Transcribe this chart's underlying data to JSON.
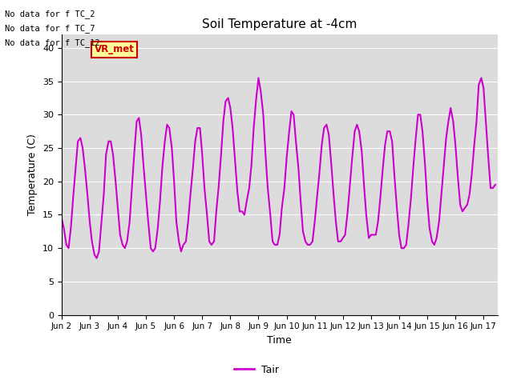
{
  "title": "Soil Temperature at -4cm",
  "xlabel": "Time",
  "ylabel": "Temperature (C)",
  "ylim": [
    0,
    42
  ],
  "yticks": [
    0,
    5,
    10,
    15,
    20,
    25,
    30,
    35,
    40
  ],
  "line_color": "#CC00CC",
  "line_width": 1.5,
  "legend_label": "Tair",
  "legend_line_color": "#CC00CC",
  "bg_color": "#DCDCDC",
  "annotations": [
    "No data for f TC_2",
    "No data for f TC_7",
    "No data for f TC_12"
  ],
  "legend_box_color": "#FFFF99",
  "legend_box_border": "#CC0000",
  "legend_text_color": "#CC0000",
  "legend_box_text": "VR_met",
  "x_tick_labels": [
    "Jun 2",
    "Jun 3",
    "Jun 4",
    "Jun 5",
    "Jun 6",
    "Jun 7",
    "Jun 8",
    "Jun 9",
    "Jun 10",
    "Jun 11",
    "Jun 12",
    "Jun 13",
    "Jun 14",
    "Jun 15",
    "Jun 16",
    "Jun 17"
  ],
  "x_tick_positions": [
    1,
    2,
    3,
    4,
    5,
    6,
    7,
    8,
    9,
    10,
    11,
    12,
    13,
    14,
    15,
    16
  ],
  "data_x": [
    1.0,
    1.08,
    1.17,
    1.25,
    1.33,
    1.42,
    1.5,
    1.58,
    1.67,
    1.75,
    1.83,
    1.92,
    2.0,
    2.08,
    2.17,
    2.25,
    2.33,
    2.42,
    2.5,
    2.58,
    2.67,
    2.75,
    2.83,
    2.92,
    3.0,
    3.08,
    3.17,
    3.25,
    3.33,
    3.42,
    3.5,
    3.58,
    3.67,
    3.75,
    3.83,
    3.92,
    4.0,
    4.08,
    4.17,
    4.25,
    4.33,
    4.42,
    4.5,
    4.58,
    4.67,
    4.75,
    4.83,
    4.92,
    5.0,
    5.08,
    5.17,
    5.25,
    5.33,
    5.42,
    5.5,
    5.58,
    5.67,
    5.75,
    5.83,
    5.92,
    6.0,
    6.08,
    6.17,
    6.25,
    6.33,
    6.42,
    6.5,
    6.58,
    6.67,
    6.75,
    6.83,
    6.92,
    7.0,
    7.08,
    7.17,
    7.25,
    7.33,
    7.42,
    7.5,
    7.58,
    7.67,
    7.75,
    7.83,
    7.92,
    8.0,
    8.08,
    8.17,
    8.25,
    8.33,
    8.42,
    8.5,
    8.58,
    8.67,
    8.75,
    8.83,
    8.92,
    9.0,
    9.08,
    9.17,
    9.25,
    9.33,
    9.42,
    9.5,
    9.58,
    9.67,
    9.75,
    9.83,
    9.92,
    10.0,
    10.08,
    10.17,
    10.25,
    10.33,
    10.42,
    10.5,
    10.58,
    10.67,
    10.75,
    10.83,
    10.92,
    11.0,
    11.08,
    11.17,
    11.25,
    11.33,
    11.42,
    11.5,
    11.58,
    11.67,
    11.75,
    11.83,
    11.92,
    12.0,
    12.08,
    12.17,
    12.25,
    12.33,
    12.42,
    12.5,
    12.58,
    12.67,
    12.75,
    12.83,
    12.92,
    13.0,
    13.08,
    13.17,
    13.25,
    13.33,
    13.42,
    13.5,
    13.58,
    13.67,
    13.75,
    13.83,
    13.92,
    14.0,
    14.08,
    14.17,
    14.25,
    14.33,
    14.42,
    14.5,
    14.58,
    14.67,
    14.75,
    14.83,
    14.92,
    15.0,
    15.08,
    15.17,
    15.25,
    15.33,
    15.42,
    15.5,
    15.58,
    15.67,
    15.75,
    15.83,
    15.92,
    16.0,
    16.08,
    16.17,
    16.25,
    16.33,
    16.42
  ],
  "data_y": [
    14.5,
    13.0,
    10.5,
    10.0,
    13.0,
    18.0,
    22.0,
    26.0,
    26.5,
    25.0,
    22.0,
    18.0,
    14.0,
    11.0,
    9.0,
    8.5,
    9.5,
    14.0,
    18.0,
    24.0,
    26.0,
    26.0,
    24.0,
    20.0,
    16.0,
    12.0,
    10.5,
    10.0,
    11.0,
    14.0,
    19.0,
    24.0,
    29.0,
    29.5,
    27.0,
    22.0,
    18.0,
    14.0,
    10.0,
    9.5,
    10.0,
    13.0,
    17.0,
    22.0,
    26.0,
    28.5,
    28.0,
    25.0,
    20.0,
    14.0,
    11.0,
    9.5,
    10.5,
    11.0,
    14.0,
    18.0,
    22.0,
    26.0,
    28.0,
    28.0,
    24.0,
    19.0,
    15.0,
    11.0,
    10.5,
    11.0,
    15.5,
    19.0,
    24.0,
    29.0,
    32.0,
    32.5,
    31.0,
    28.0,
    23.0,
    18.5,
    15.5,
    15.5,
    15.0,
    17.0,
    19.0,
    22.5,
    28.0,
    32.5,
    35.5,
    33.5,
    30.0,
    24.0,
    19.0,
    15.0,
    11.0,
    10.5,
    10.5,
    12.0,
    16.0,
    19.0,
    23.5,
    27.0,
    30.5,
    30.0,
    26.0,
    22.0,
    17.0,
    12.5,
    11.0,
    10.5,
    10.5,
    11.0,
    14.0,
    17.5,
    21.5,
    25.5,
    28.0,
    28.5,
    27.0,
    23.0,
    18.0,
    14.0,
    11.0,
    11.0,
    11.5,
    12.0,
    15.5,
    19.5,
    23.5,
    27.5,
    28.5,
    27.5,
    24.5,
    19.5,
    15.0,
    11.5,
    12.0,
    12.0,
    12.0,
    14.0,
    17.5,
    22.0,
    25.5,
    27.5,
    27.5,
    26.0,
    21.0,
    16.0,
    12.0,
    10.0,
    10.0,
    10.5,
    13.5,
    17.5,
    22.0,
    26.0,
    30.0,
    30.0,
    27.5,
    22.5,
    17.0,
    13.0,
    11.0,
    10.5,
    11.5,
    14.0,
    18.0,
    22.0,
    26.5,
    29.0,
    31.0,
    29.0,
    25.5,
    21.0,
    16.5,
    15.5,
    16.0,
    16.5,
    18.0,
    21.0,
    25.5,
    29.0,
    34.5,
    35.5,
    34.0,
    29.0,
    23.5,
    19.0,
    19.0,
    19.5
  ]
}
